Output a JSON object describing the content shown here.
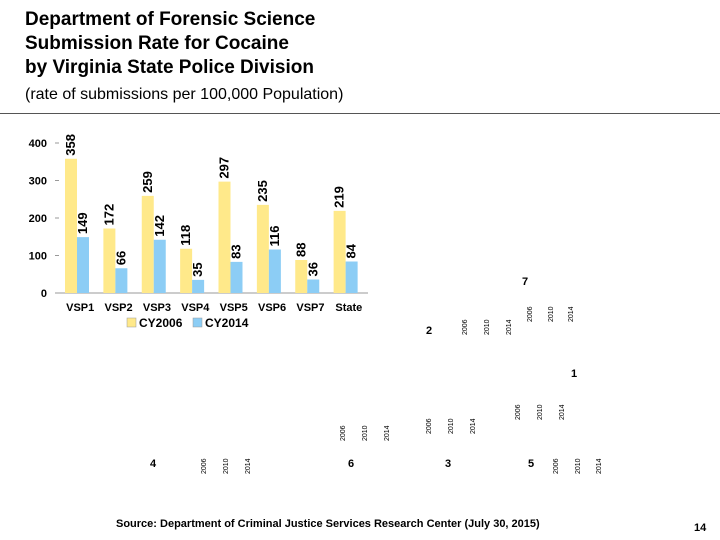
{
  "title": {
    "line1": "Department of Forensic Science",
    "line2": "Submission Rate for Cocaine",
    "line3": "by Virginia State Police Division"
  },
  "subtitle": "(rate of submissions per 100,000 Population)",
  "chart_data": {
    "type": "bar",
    "title": "",
    "xlabel": "",
    "ylabel": "",
    "ylim": [
      0,
      400
    ],
    "yticks": [
      "0",
      "100",
      "200",
      "300",
      "400"
    ],
    "categories": [
      "VSP1",
      "VSP2",
      "VSP3",
      "VSP4",
      "VSP5",
      "VSP6",
      "VSP7",
      "State"
    ],
    "series": [
      {
        "name": "CY2006",
        "color": "#FFE98A",
        "values": [
          358,
          172,
          259,
          118,
          297,
          235,
          88,
          219
        ],
        "labels": [
          "358",
          "172",
          "259",
          "118",
          "297",
          "235",
          "88",
          "219"
        ]
      },
      {
        "name": "CY2014",
        "color": "#8CCDF5",
        "values": [
          149,
          66,
          142,
          35,
          83,
          116,
          36,
          84
        ],
        "labels": [
          "149",
          "66",
          "142",
          "35",
          "83",
          "116",
          "36",
          "84"
        ]
      }
    ],
    "legend": "bottom"
  },
  "map_labels": {
    "region_numbers": [
      "7",
      "2",
      "1",
      "4",
      "6",
      "3",
      "5"
    ],
    "year_labels": [
      "2006",
      "2010",
      "2014"
    ]
  },
  "footer": {
    "source": "Source:  Department of Criminal Justice Services Research Center (July 30, 2015)",
    "page": "14"
  }
}
